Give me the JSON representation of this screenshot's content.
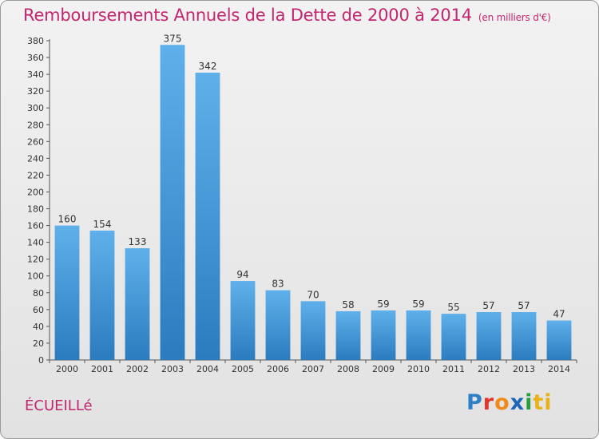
{
  "header": {
    "title": "Remboursements Annuels de la Dette de 2000 à 2014",
    "unit": "(en milliers d'€)"
  },
  "commune": "ÉCUEILLé",
  "logo": {
    "letters": [
      "P",
      "r",
      "o",
      "x",
      "i",
      "t",
      "i"
    ]
  },
  "colors": {
    "title": "#c2266f",
    "bar_top": "#5fb0ea",
    "bar_bottom": "#2a7cbf"
  },
  "chart_data": {
    "type": "bar",
    "title": "Remboursements Annuels de la Dette de 2000 à 2014",
    "xlabel": "",
    "ylabel": "",
    "categories": [
      "2000",
      "2001",
      "2002",
      "2003",
      "2004",
      "2005",
      "2006",
      "2007",
      "2008",
      "2009",
      "2010",
      "2011",
      "2012",
      "2013",
      "2014"
    ],
    "values": [
      160,
      154,
      133,
      375,
      342,
      94,
      83,
      70,
      58,
      59,
      59,
      55,
      57,
      57,
      47
    ],
    "ylim": [
      0,
      380
    ],
    "yticks": [
      0,
      20,
      40,
      60,
      80,
      100,
      120,
      140,
      160,
      180,
      200,
      220,
      240,
      260,
      280,
      300,
      320,
      340,
      360,
      380
    ],
    "grid": false,
    "legend": "none"
  }
}
